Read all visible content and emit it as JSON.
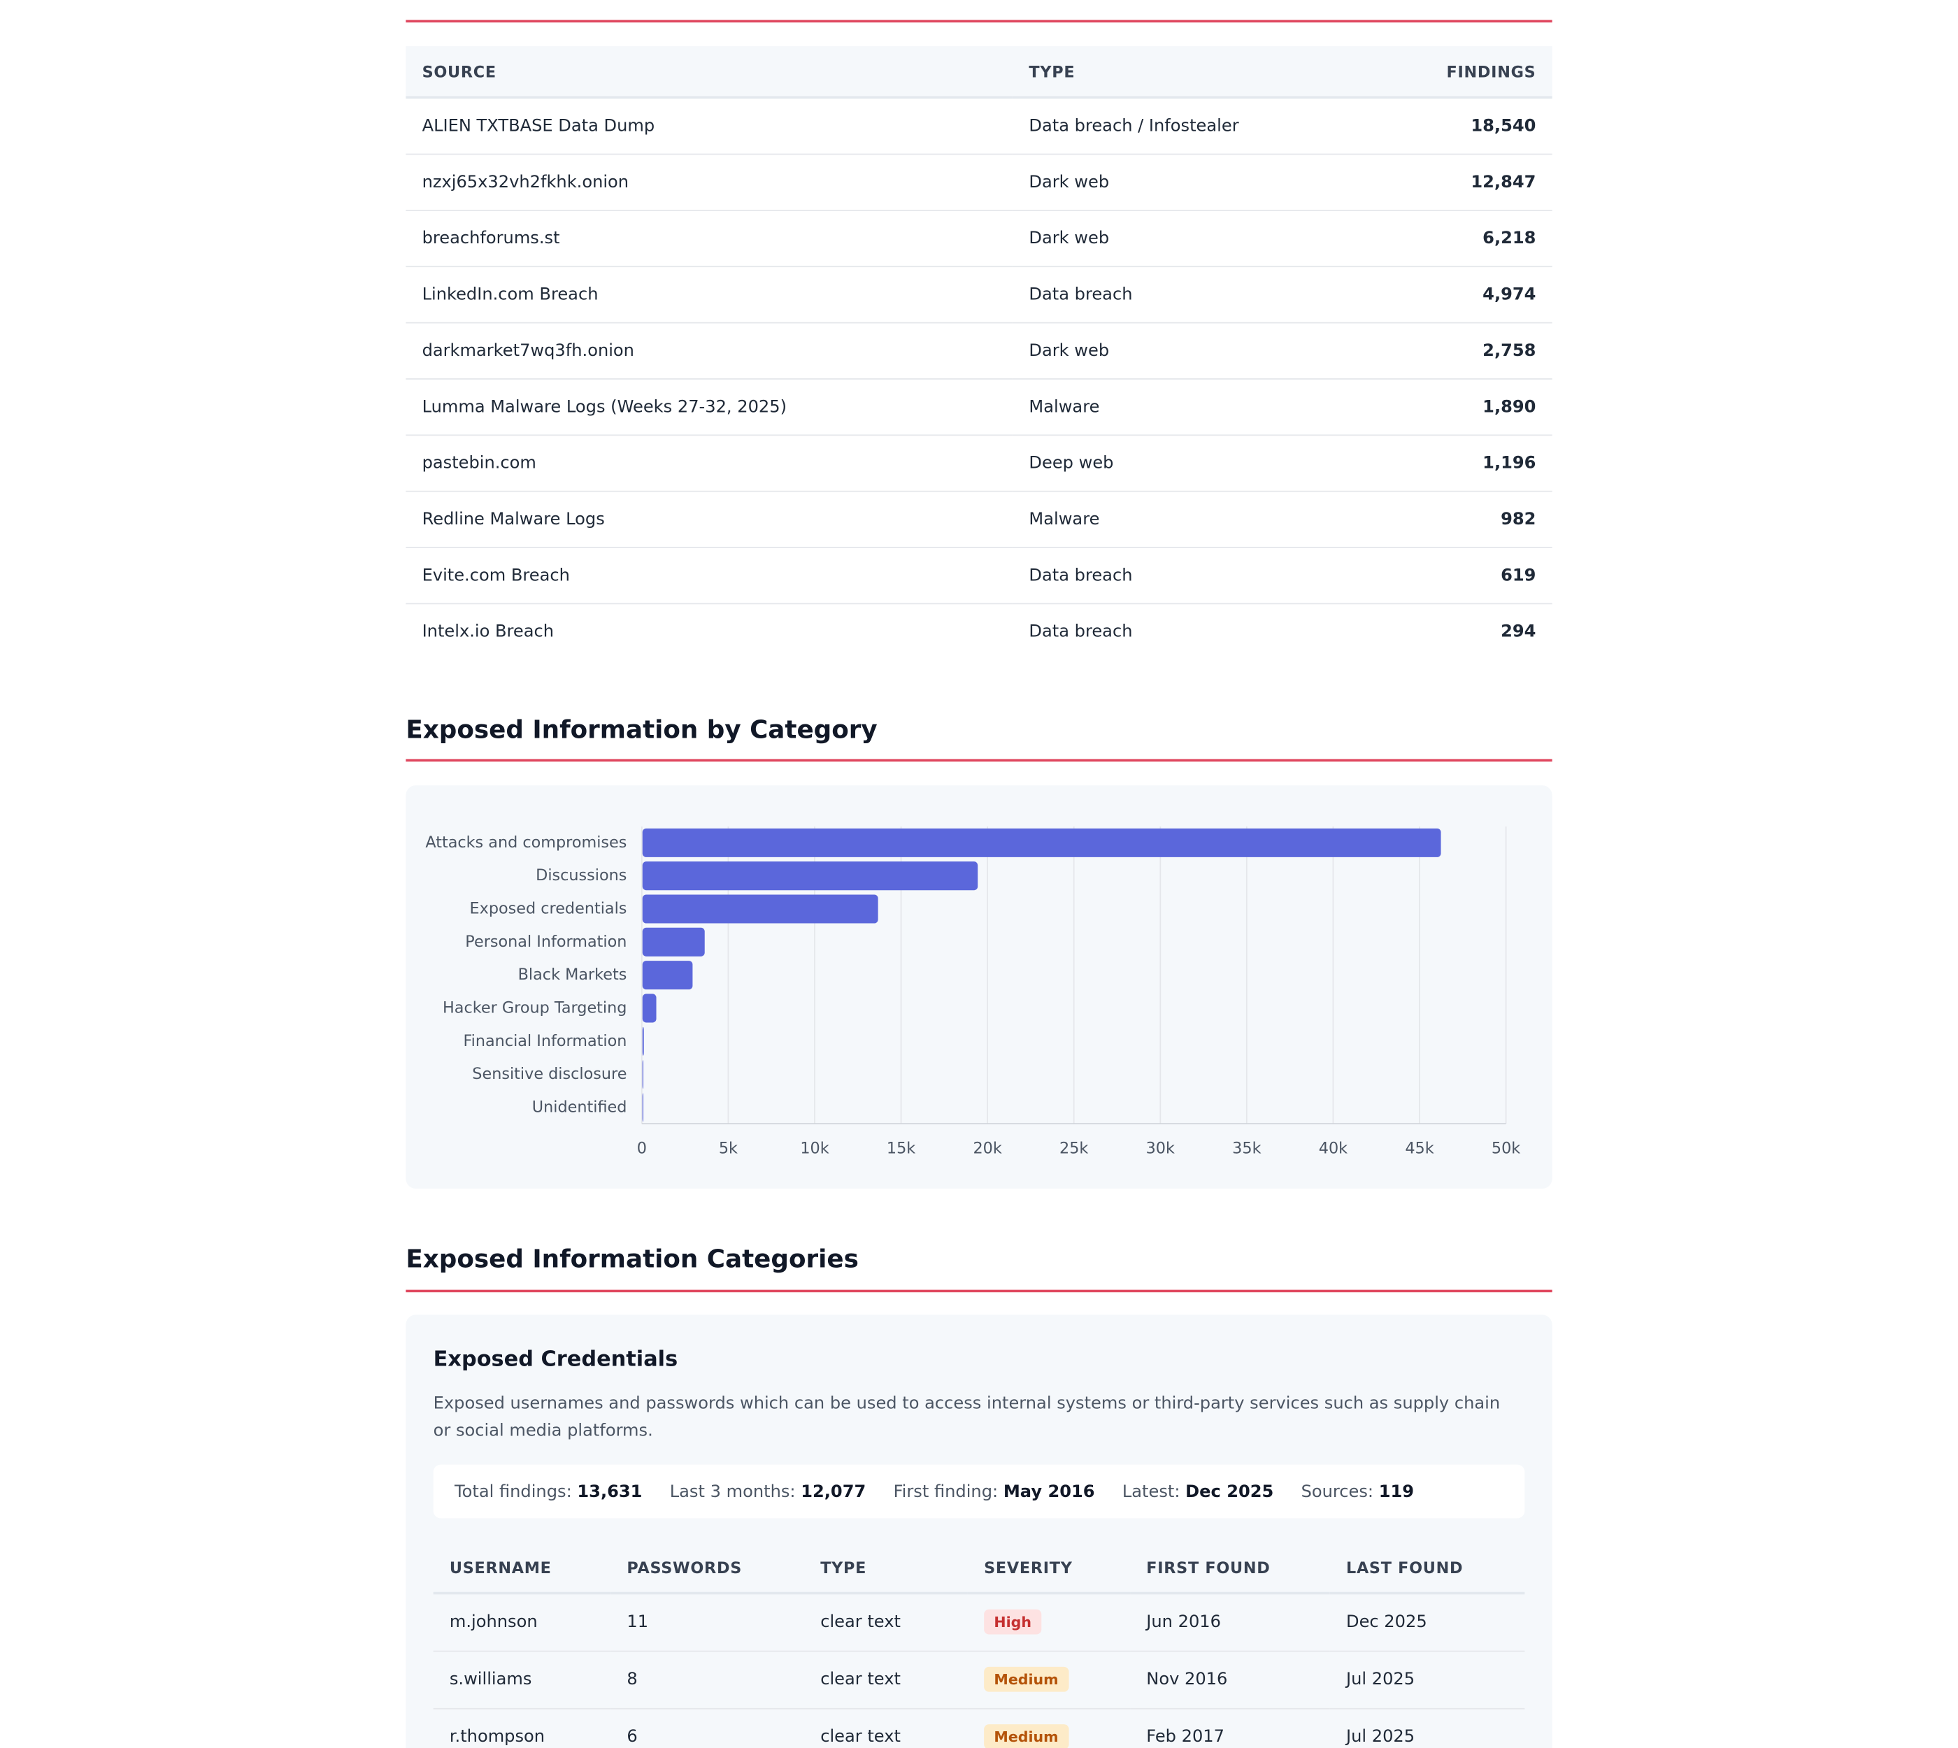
{
  "sources_table": {
    "headers": [
      "SOURCE",
      "TYPE",
      "FINDINGS"
    ],
    "rows": [
      [
        "ALIEN TXTBASE Data Dump",
        "Data breach / Infostealer",
        "18,540"
      ],
      [
        "nzxj65x32vh2fkhk.onion",
        "Dark web",
        "12,847"
      ],
      [
        "breachforums.st",
        "Dark web",
        "6,218"
      ],
      [
        "LinkedIn.com Breach",
        "Data breach",
        "4,974"
      ],
      [
        "darkmarket7wq3fh.onion",
        "Dark web",
        "2,758"
      ],
      [
        "Lumma Malware Logs (Weeks 27-32, 2025)",
        "Malware",
        "1,890"
      ],
      [
        "pastebin.com",
        "Deep web",
        "1,196"
      ],
      [
        "Redline Malware Logs",
        "Malware",
        "982"
      ],
      [
        "Evite.com Breach",
        "Data breach",
        "619"
      ],
      [
        "Intelx.io Breach",
        "Data breach",
        "294"
      ]
    ]
  },
  "chart_data": {
    "type": "bar",
    "orientation": "horizontal",
    "title": "Exposed Information by Category",
    "categories": [
      "Attacks and compromises",
      "Discussions",
      "Exposed credentials",
      "Personal Information",
      "Black Markets",
      "Hacker Group Targeting",
      "Financial Information",
      "Sensitive disclosure",
      "Unidentified"
    ],
    "values": [
      46200,
      19400,
      13631,
      3600,
      2900,
      800,
      80,
      50,
      50
    ],
    "color": "#5b67db",
    "xlim": [
      0,
      50000
    ],
    "xticks": [
      0,
      {
        "value": 5000,
        "label": "5k"
      },
      {
        "value": 10000,
        "label": "10k"
      },
      {
        "value": 15000,
        "label": "15k"
      },
      {
        "value": 20000,
        "label": "20k"
      },
      {
        "value": 25000,
        "label": "25k"
      },
      {
        "value": 30000,
        "label": "30k"
      },
      {
        "value": 35000,
        "label": "35k"
      },
      {
        "value": 40000,
        "label": "40k"
      },
      {
        "value": 45000,
        "label": "45k"
      },
      {
        "value": 50000,
        "label": "50k"
      }
    ],
    "grid": true
  },
  "categories_section": {
    "title": "Exposed Information Categories",
    "card": {
      "title": "Exposed Credentials",
      "description": "Exposed usernames and passwords which can be used to access internal systems or third-party services such as supply chain or social media platforms.",
      "stats": [
        {
          "label": "Total findings:",
          "value": "13,631"
        },
        {
          "label": "Last 3 months:",
          "value": "12,077"
        },
        {
          "label": "First finding:",
          "value": "May 2016"
        },
        {
          "label": "Latest:",
          "value": "Dec 2025"
        },
        {
          "label": "Sources:",
          "value": "119"
        }
      ],
      "table": {
        "headers": [
          "USERNAME",
          "PASSWORDS",
          "TYPE",
          "SEVERITY",
          "FIRST FOUND",
          "LAST FOUND"
        ],
        "rows": [
          [
            "m.johnson",
            "11",
            "clear text",
            {
              "label": "High",
              "color": "#c53030",
              "background": "#fde2e2"
            },
            "Jun 2016",
            "Dec 2025"
          ],
          [
            "s.williams",
            "8",
            "clear text",
            {
              "label": "Medium",
              "color": "#b45309",
              "background": "#fdebc8"
            },
            "Nov 2016",
            "Jul 2025"
          ],
          [
            "r.thompson",
            "6",
            "clear text",
            {
              "label": "Medium",
              "color": "#b45309",
              "background": "#fdebc8"
            },
            "Feb 2017",
            "Jul 2025"
          ]
        ]
      }
    }
  }
}
